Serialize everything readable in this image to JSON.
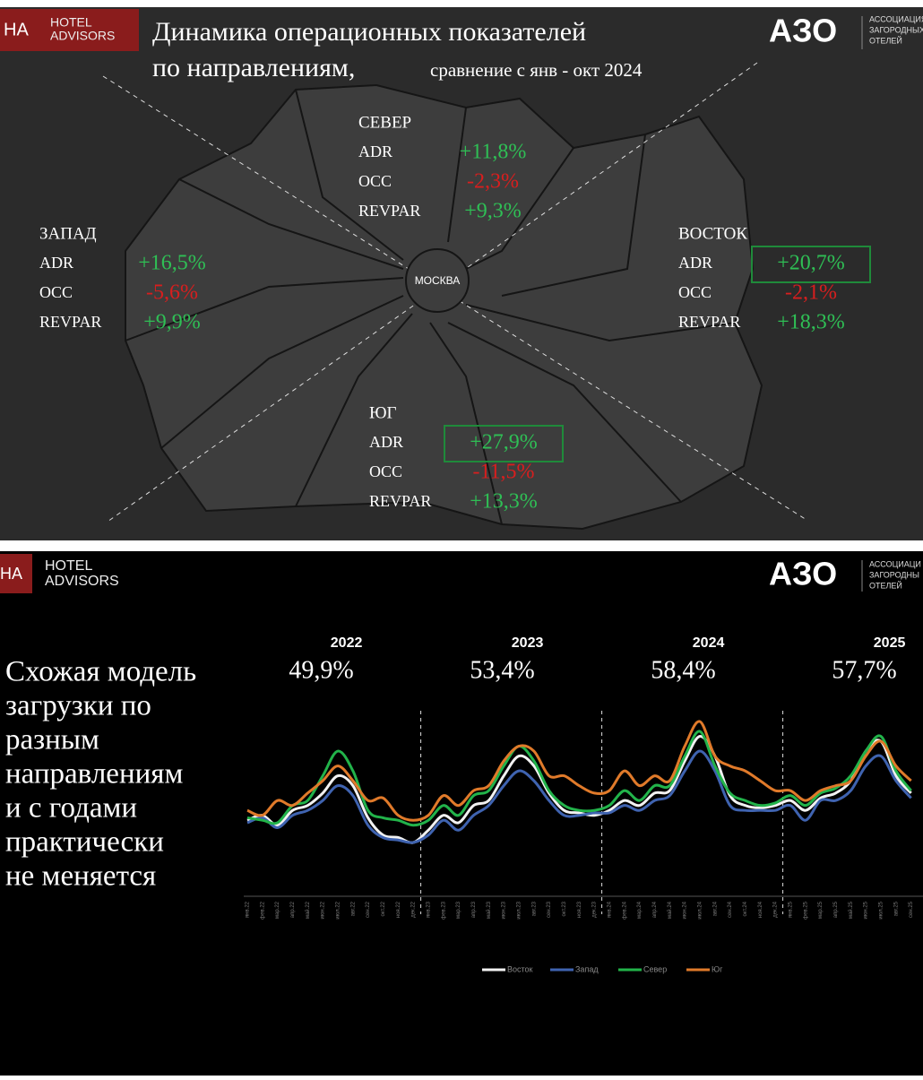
{
  "slide1": {
    "logo": "HA",
    "brand": [
      "HOTEL",
      "ADVISORS"
    ],
    "title": "Динамика операционных показателей",
    "title_line2": "по направлениям,",
    "subtitle": "сравнение с янв - окт 2024",
    "azo": "АЗО",
    "azo_caption": [
      "АССОЦИАЦИЯ",
      "ЗАГОРОДНЫХ",
      "ОТЕЛЕЙ"
    ],
    "center": "МОСКВА",
    "regions": [
      {
        "name": "СЕВЕР",
        "metrics": [
          {
            "label": "ADR",
            "value": "+11,8%"
          },
          {
            "label": "OCC",
            "value": "-2,3%"
          },
          {
            "label": "REVPAR",
            "value": "+9,3%"
          }
        ]
      },
      {
        "name": "ЗАПАД",
        "metrics": [
          {
            "label": "ADR",
            "value": "+16,5%"
          },
          {
            "label": "OCC",
            "value": "-5,6%"
          },
          {
            "label": "REVPAR",
            "value": "+9,9%"
          }
        ]
      },
      {
        "name": "ВОСТОК",
        "metrics": [
          {
            "label": "ADR",
            "value": "+20,7%",
            "highlight": true
          },
          {
            "label": "OCC",
            "value": "-2,1%"
          },
          {
            "label": "REVPAR",
            "value": "+18,3%"
          }
        ]
      },
      {
        "name": "ЮГ",
        "metrics": [
          {
            "label": "ADR",
            "value": "+27,9%",
            "highlight": true
          },
          {
            "label": "OCC",
            "value": "-11,5%"
          },
          {
            "label": "REVPAR",
            "value": "+13,3%"
          }
        ]
      }
    ]
  },
  "slide2": {
    "logo": "HA",
    "brand": [
      "HOTEL",
      "ADVISORS"
    ],
    "azo": "АЗО",
    "azo_caption": [
      "АССОЦИАЦИ",
      "ЗАГОРОДНЫ",
      "ОТЕЛЕЙ"
    ],
    "text": [
      "Схожая модель",
      "загрузки по",
      "разным",
      "направлениям",
      "и с годами",
      "практически",
      "не меняется"
    ]
  },
  "chart_data": {
    "type": "line",
    "years": [
      {
        "year": "2022",
        "value": "49,9%"
      },
      {
        "year": "2023",
        "value": "53,4%"
      },
      {
        "year": "2024",
        "value": "58,4%"
      },
      {
        "year": "2025",
        "value": "57,7%"
      }
    ],
    "categories": [
      "янв.22",
      "фев.22",
      "мар.22",
      "апр.22",
      "май.22",
      "июн.22",
      "июл.22",
      "авг.22",
      "сен.22",
      "окт.22",
      "ноя.22",
      "дек.22",
      "янв.23",
      "фев.23",
      "мар.23",
      "апр.23",
      "май.23",
      "июн.23",
      "июл.23",
      "авг.23",
      "сен.23",
      "окт.23",
      "ноя.23",
      "дек.23",
      "янв.24",
      "фев.24",
      "мар.24",
      "апр.24",
      "май.24",
      "июн.24",
      "июл.24",
      "авг.24",
      "сен.24",
      "окт.24",
      "ноя.24",
      "дек.24",
      "янв.25",
      "фев.25",
      "мар.25",
      "апр.25",
      "май.25",
      "июн.25",
      "июл.25",
      "авг.25",
      "сен.25"
    ],
    "series": [
      {
        "name": "Восток",
        "color": "#f2f2f2",
        "values": [
          44,
          46,
          42,
          48,
          50,
          55,
          62,
          58,
          45,
          38,
          37,
          35,
          40,
          46,
          43,
          50,
          52,
          62,
          70,
          66,
          55,
          48,
          47,
          46,
          48,
          52,
          50,
          55,
          56,
          68,
          78,
          70,
          54,
          50,
          49,
          50,
          52,
          48,
          53,
          55,
          60,
          72,
          76,
          62,
          55
        ]
      },
      {
        "name": "Запад",
        "color": "#3f63b0",
        "values": [
          43,
          45,
          41,
          46,
          48,
          52,
          58,
          54,
          42,
          37,
          36,
          35,
          38,
          44,
          40,
          46,
          50,
          58,
          64,
          60,
          52,
          46,
          46,
          47,
          47,
          50,
          48,
          52,
          54,
          64,
          72,
          64,
          50,
          48,
          48,
          48,
          50,
          44,
          52,
          52,
          56,
          66,
          70,
          60,
          53
        ]
      },
      {
        "name": "Север",
        "color": "#22b34a",
        "values": [
          45,
          44,
          43,
          50,
          52,
          62,
          72,
          64,
          48,
          45,
          44,
          42,
          44,
          50,
          46,
          54,
          56,
          66,
          74,
          68,
          56,
          50,
          48,
          48,
          50,
          56,
          52,
          58,
          58,
          70,
          80,
          66,
          55,
          52,
          50,
          51,
          54,
          50,
          55,
          57,
          62,
          72,
          78,
          64,
          56
        ]
      },
      {
        "name": "Юг",
        "color": "#e07a2a",
        "values": [
          48,
          46,
          52,
          50,
          55,
          60,
          66,
          60,
          52,
          53,
          46,
          44,
          46,
          54,
          50,
          56,
          58,
          68,
          74,
          72,
          62,
          62,
          58,
          55,
          56,
          64,
          58,
          62,
          60,
          74,
          84,
          70,
          66,
          64,
          60,
          56,
          56,
          52,
          56,
          58,
          60,
          70,
          76,
          66,
          60
        ]
      }
    ]
  }
}
